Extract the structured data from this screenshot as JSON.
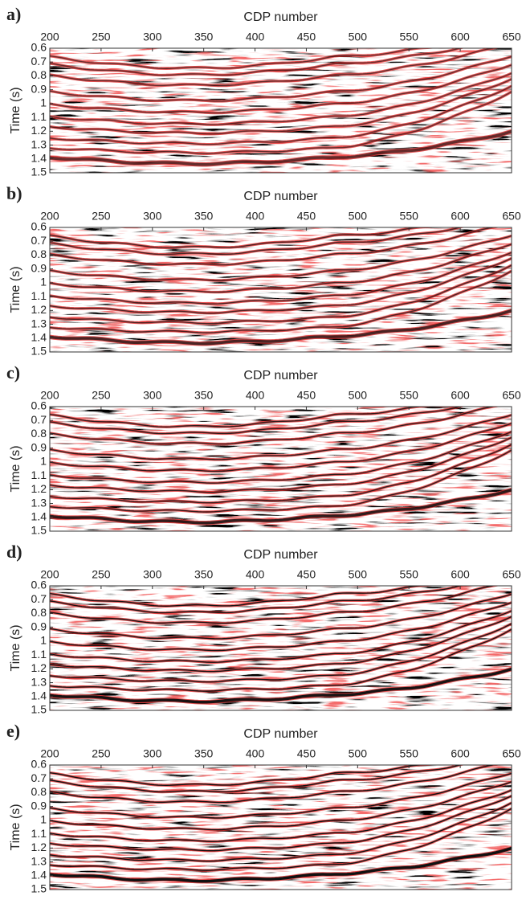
{
  "chart_data": [
    {
      "type": "seismic",
      "label": "a)",
      "xlabel": "CDP number",
      "ylabel": "Time (s)",
      "xlim": [
        200,
        650
      ],
      "ylim": [
        0.6,
        1.5
      ],
      "y_inverted": true,
      "xticks": [
        200,
        250,
        300,
        350,
        400,
        450,
        500,
        550,
        600,
        650
      ],
      "yticks": [
        0.6,
        0.7,
        0.8,
        0.9,
        1,
        1.1,
        1.2,
        1.3,
        1.4,
        1.5
      ]
    },
    {
      "type": "seismic",
      "label": "b)",
      "xlabel": "CDP number",
      "ylabel": "Time (s)",
      "xlim": [
        200,
        650
      ],
      "ylim": [
        0.6,
        1.5
      ],
      "y_inverted": true,
      "xticks": [
        200,
        250,
        300,
        350,
        400,
        450,
        500,
        550,
        600,
        650
      ],
      "yticks": [
        0.6,
        0.7,
        0.8,
        0.9,
        1,
        1.1,
        1.2,
        1.3,
        1.4,
        1.5
      ]
    },
    {
      "type": "seismic",
      "label": "c)",
      "xlabel": "CDP number",
      "ylabel": "Time (s)",
      "xlim": [
        200,
        650
      ],
      "ylim": [
        0.6,
        1.5
      ],
      "y_inverted": true,
      "xticks": [
        200,
        250,
        300,
        350,
        400,
        450,
        500,
        550,
        600,
        650
      ],
      "yticks": [
        0.6,
        0.7,
        0.8,
        0.9,
        1,
        1.1,
        1.2,
        1.3,
        1.4,
        1.5
      ]
    },
    {
      "type": "seismic",
      "label": "d)",
      "xlabel": "CDP number",
      "ylabel": "Time (s)",
      "xlim": [
        200,
        650
      ],
      "ylim": [
        0.6,
        1.5
      ],
      "y_inverted": true,
      "xticks": [
        200,
        250,
        300,
        350,
        400,
        450,
        500,
        550,
        600,
        650
      ],
      "yticks": [
        0.6,
        0.7,
        0.8,
        0.9,
        1,
        1.1,
        1.2,
        1.3,
        1.4,
        1.5
      ]
    },
    {
      "type": "seismic",
      "label": "e)",
      "xlabel": "CDP number",
      "ylabel": "Time (s)",
      "xlim": [
        200,
        650
      ],
      "ylim": [
        0.6,
        1.5
      ],
      "y_inverted": true,
      "xticks": [
        200,
        250,
        300,
        350,
        400,
        450,
        500,
        550,
        600,
        650
      ],
      "yticks": [
        0.6,
        0.7,
        0.8,
        0.9,
        1,
        1.1,
        1.2,
        1.3,
        1.4,
        1.5
      ]
    }
  ]
}
